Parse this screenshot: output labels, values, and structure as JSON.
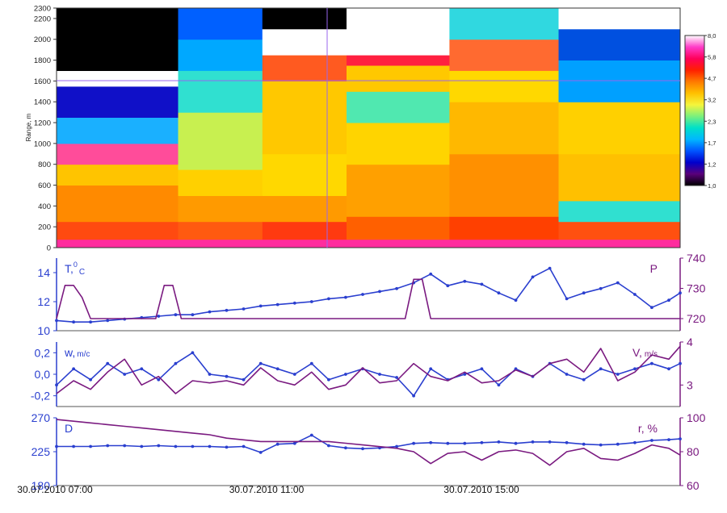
{
  "figure": {
    "x_start_label": "30.07.2010 07:00",
    "x_mid_label": "30.07.2010 11:00",
    "x_end_label": "30.07.2010 15:00"
  },
  "chart_data": [
    {
      "type": "heatmap",
      "title": "",
      "ylabel": "Range, m",
      "ylim": [
        0,
        2300
      ],
      "y_ticks": [
        "0",
        "200",
        "400",
        "600",
        "800",
        "1000",
        "1200",
        "1400",
        "1600",
        "1800",
        "2000",
        "2200",
        "2300"
      ],
      "colorbar_ticks": [
        "8,0",
        "5,8",
        "4,7",
        "3,2",
        "2,3",
        "1,7",
        "1,2",
        "1,0"
      ],
      "colorbar_colors": [
        "#000000",
        "#5a007a",
        "#0000cc",
        "#0055ff",
        "#00b7ff",
        "#00e0c8",
        "#7cf07c",
        "#f5f53c",
        "#ffc000",
        "#ff7a00",
        "#ff2000",
        "#ff005a",
        "#ff3cc8",
        "#ffffff"
      ],
      "sections": [
        {
          "x": [
            0,
            0.195
          ],
          "layers": [
            [
              0,
              80,
              "#ff2d9e"
            ],
            [
              80,
              250,
              "#ff4a10"
            ],
            [
              250,
              600,
              "#ff8a00"
            ],
            [
              600,
              800,
              "#ffc400"
            ],
            [
              800,
              1000,
              "#ff4c9a"
            ],
            [
              1000,
              1250,
              "#1ab0ff"
            ],
            [
              1250,
              1550,
              "#1010c8"
            ],
            [
              1550,
              1700,
              "#ffffff"
            ],
            [
              1700,
              2300,
              "#000000"
            ]
          ]
        },
        {
          "x": [
            0.195,
            0.33
          ],
          "layers": [
            [
              0,
              80,
              "#ff2d9e"
            ],
            [
              80,
              250,
              "#ff5a10"
            ],
            [
              250,
              500,
              "#ff9a00"
            ],
            [
              500,
              750,
              "#ffd000"
            ],
            [
              750,
              1300,
              "#c8f050"
            ],
            [
              1300,
              1700,
              "#30e0d0"
            ],
            [
              1700,
              2000,
              "#00a8ff"
            ],
            [
              2000,
              2300,
              "#0060ff"
            ]
          ]
        },
        {
          "x": [
            0.33,
            0.465
          ],
          "layers": [
            [
              0,
              80,
              "#ff2d9e"
            ],
            [
              80,
              250,
              "#ff3a10"
            ],
            [
              250,
              500,
              "#ff9a00"
            ],
            [
              500,
              900,
              "#ffd800"
            ],
            [
              900,
              1600,
              "#ffc800"
            ],
            [
              1600,
              1850,
              "#ff5a20"
            ],
            [
              1850,
              2100,
              "#ffffff"
            ],
            [
              2100,
              2300,
              "#000000"
            ]
          ]
        },
        {
          "x": [
            0.465,
            0.63
          ],
          "layers": [
            [
              0,
              80,
              "#ff2d9e"
            ],
            [
              80,
              300,
              "#ff6000"
            ],
            [
              300,
              800,
              "#ffa000"
            ],
            [
              800,
              1200,
              "#ffd400"
            ],
            [
              1200,
              1500,
              "#50e8b0"
            ],
            [
              1500,
              1750,
              "#ffc800"
            ],
            [
              1750,
              1850,
              "#ff2040"
            ],
            [
              1850,
              2300,
              "#ffffff"
            ]
          ]
        },
        {
          "x": [
            0.63,
            0.805
          ],
          "layers": [
            [
              0,
              80,
              "#ff2d9e"
            ],
            [
              80,
              300,
              "#ff4000"
            ],
            [
              300,
              900,
              "#ff9000"
            ],
            [
              900,
              1400,
              "#ffb800"
            ],
            [
              1400,
              1700,
              "#ffd800"
            ],
            [
              1700,
              2000,
              "#ff6a30"
            ],
            [
              2000,
              2300,
              "#30d8e0"
            ]
          ]
        },
        {
          "x": [
            0.805,
            1.0
          ],
          "layers": [
            [
              0,
              80,
              "#ff2d9e"
            ],
            [
              80,
              250,
              "#ff5010"
            ],
            [
              250,
              450,
              "#30e0d0"
            ],
            [
              450,
              900,
              "#ffc000"
            ],
            [
              900,
              1400,
              "#ffd000"
            ],
            [
              1400,
              1800,
              "#00a0ff"
            ],
            [
              1800,
              2100,
              "#0050e0"
            ],
            [
              2100,
              2300,
              "#ffffff"
            ]
          ]
        }
      ]
    },
    {
      "type": "line",
      "x_range": [
        0,
        11
      ],
      "left_axis": {
        "label": "T,",
        "sup": "0",
        "sub": "C",
        "ylim": [
          10,
          15
        ],
        "ticks": [
          "10",
          "12",
          "14"
        ]
      },
      "right_axis": {
        "label": "P",
        "ylim": [
          716,
          740
        ],
        "ticks": [
          "720",
          "730",
          "740"
        ]
      },
      "series": [
        {
          "name": "T",
          "axis": "left",
          "markers": true,
          "color": "#2a3fcf",
          "x": [
            0,
            0.3,
            0.6,
            0.9,
            1.2,
            1.5,
            1.8,
            2.1,
            2.4,
            2.7,
            3.0,
            3.3,
            3.6,
            3.9,
            4.2,
            4.5,
            4.8,
            5.1,
            5.4,
            5.7,
            6.0,
            6.3,
            6.6,
            6.9,
            7.2,
            7.5,
            7.8,
            8.1,
            8.4,
            8.7,
            9.0,
            9.3,
            9.6,
            9.9,
            10.2,
            10.5,
            10.8,
            11.0
          ],
          "y": [
            10.7,
            10.6,
            10.6,
            10.7,
            10.8,
            10.9,
            11.0,
            11.1,
            11.1,
            11.3,
            11.4,
            11.5,
            11.7,
            11.8,
            11.9,
            12.0,
            12.2,
            12.3,
            12.5,
            12.7,
            12.9,
            13.3,
            13.9,
            13.1,
            13.4,
            13.2,
            12.6,
            12.1,
            13.7,
            14.3,
            12.2,
            12.6,
            12.9,
            13.3,
            12.5,
            11.6,
            12.1,
            12.6
          ]
        },
        {
          "name": "P",
          "axis": "right",
          "markers": false,
          "color": "#7a1a80",
          "x": [
            0,
            0.15,
            0.3,
            0.45,
            0.6,
            1.6,
            1.75,
            1.9,
            2.05,
            2.2,
            6.0,
            6.15,
            6.3,
            6.45,
            6.6,
            11.0
          ],
          "y": [
            720,
            731,
            731,
            727,
            720,
            720,
            720,
            731,
            731,
            720,
            720,
            720,
            733,
            733,
            720,
            720
          ]
        }
      ]
    },
    {
      "type": "line",
      "x_range": [
        0,
        11
      ],
      "left_axis": {
        "label": "w,",
        "sub": "m/c",
        "ylim": [
          -0.3,
          0.3
        ],
        "ticks": [
          "-0,2",
          "0,0",
          "0,2"
        ]
      },
      "right_axis": {
        "label": "V,",
        "sub": "m/s",
        "ylim": [
          2.5,
          4.0
        ],
        "ticks": [
          "3",
          "4"
        ]
      },
      "series": [
        {
          "name": "w",
          "axis": "left",
          "markers": true,
          "color": "#2a3fcf",
          "x": [
            0,
            0.3,
            0.6,
            0.9,
            1.2,
            1.5,
            1.8,
            2.1,
            2.4,
            2.7,
            3.0,
            3.3,
            3.6,
            3.9,
            4.2,
            4.5,
            4.8,
            5.1,
            5.4,
            5.7,
            6.0,
            6.3,
            6.6,
            6.9,
            7.2,
            7.5,
            7.8,
            8.1,
            8.4,
            8.7,
            9.0,
            9.3,
            9.6,
            9.9,
            10.2,
            10.5,
            10.8,
            11.0
          ],
          "y": [
            -0.1,
            0.05,
            -0.05,
            0.1,
            0.0,
            0.05,
            -0.05,
            0.1,
            0.2,
            0.0,
            -0.02,
            -0.05,
            0.1,
            0.05,
            0.0,
            0.1,
            -0.05,
            0.0,
            0.05,
            0.0,
            -0.03,
            -0.2,
            0.05,
            -0.05,
            0.0,
            0.05,
            -0.1,
            0.05,
            -0.02,
            0.1,
            0.0,
            -0.05,
            0.05,
            0.0,
            0.05,
            0.1,
            0.05,
            0.1
          ]
        },
        {
          "name": "V",
          "axis": "right",
          "markers": false,
          "color": "#7a1a80",
          "x": [
            0,
            0.3,
            0.6,
            0.9,
            1.2,
            1.5,
            1.8,
            2.1,
            2.4,
            2.7,
            3.0,
            3.3,
            3.6,
            3.9,
            4.2,
            4.5,
            4.8,
            5.1,
            5.4,
            5.7,
            6.0,
            6.3,
            6.6,
            6.9,
            7.2,
            7.5,
            7.8,
            8.1,
            8.4,
            8.7,
            9.0,
            9.3,
            9.6,
            9.9,
            10.2,
            10.5,
            10.8,
            11.0
          ],
          "y": [
            2.8,
            3.1,
            2.9,
            3.3,
            3.6,
            3.0,
            3.2,
            2.8,
            3.1,
            3.05,
            3.1,
            3.0,
            3.4,
            3.1,
            3.0,
            3.3,
            2.9,
            3.0,
            3.4,
            3.05,
            3.1,
            3.5,
            3.2,
            3.1,
            3.3,
            3.05,
            3.1,
            3.35,
            3.2,
            3.5,
            3.6,
            3.3,
            3.85,
            3.1,
            3.3,
            3.7,
            3.6,
            3.9
          ]
        }
      ]
    },
    {
      "type": "line",
      "x_range": [
        0,
        11
      ],
      "left_axis": {
        "label": "D",
        "ylim": [
          180,
          270
        ],
        "ticks": [
          "180",
          "225",
          "270"
        ]
      },
      "right_axis": {
        "label": "r, %",
        "ylim": [
          60,
          100
        ],
        "ticks": [
          "60",
          "80",
          "100"
        ]
      },
      "series": [
        {
          "name": "D",
          "axis": "left",
          "markers": true,
          "color": "#2a3fcf",
          "x": [
            0,
            0.3,
            0.6,
            0.9,
            1.2,
            1.5,
            1.8,
            2.1,
            2.4,
            2.7,
            3.0,
            3.3,
            3.6,
            3.9,
            4.2,
            4.5,
            4.8,
            5.1,
            5.4,
            5.7,
            6.0,
            6.3,
            6.6,
            6.9,
            7.2,
            7.5,
            7.8,
            8.1,
            8.4,
            8.7,
            9.0,
            9.3,
            9.6,
            9.9,
            10.2,
            10.5,
            10.8,
            11.0
          ],
          "y": [
            232,
            232,
            232,
            233,
            233,
            232,
            233,
            232,
            232,
            232,
            231,
            232,
            224,
            235,
            236,
            247,
            233,
            230,
            229,
            230,
            232,
            236,
            237,
            236,
            236,
            237,
            238,
            236,
            238,
            238,
            237,
            235,
            234,
            235,
            237,
            240,
            241,
            242
          ]
        },
        {
          "name": "r",
          "axis": "right",
          "markers": false,
          "color": "#7a1a80",
          "x": [
            0,
            0.3,
            0.6,
            0.9,
            1.2,
            1.5,
            1.8,
            2.1,
            2.4,
            2.7,
            3.0,
            3.3,
            3.6,
            3.9,
            4.2,
            4.5,
            4.8,
            5.1,
            5.4,
            5.7,
            6.0,
            6.3,
            6.6,
            6.9,
            7.2,
            7.5,
            7.8,
            8.1,
            8.4,
            8.7,
            9.0,
            9.3,
            9.6,
            9.9,
            10.2,
            10.5,
            10.8,
            11.0
          ],
          "y": [
            99,
            98,
            97,
            96,
            95,
            94,
            93,
            92,
            91,
            90,
            88,
            87,
            86,
            86,
            86,
            86,
            86,
            85,
            84,
            83,
            82,
            80,
            73,
            79,
            80,
            75,
            80,
            81,
            79,
            72,
            80,
            82,
            76,
            75,
            79,
            84,
            82,
            78
          ]
        }
      ]
    }
  ]
}
